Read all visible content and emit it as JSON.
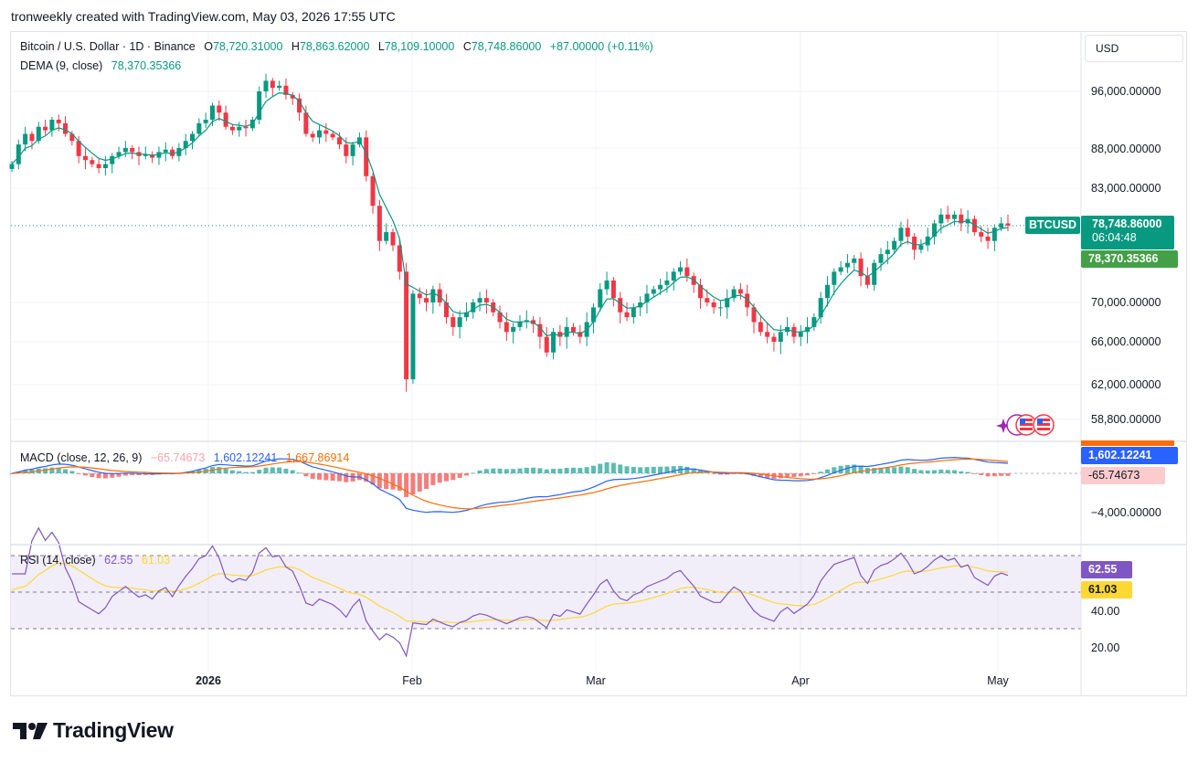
{
  "header": {
    "caption": "tronweekly created with TradingView.com, May 03, 2026 17:55 UTC"
  },
  "symbol": {
    "title": "Bitcoin / U.S. Dollar · 1D · Binance",
    "o_label": "O",
    "o": "78,720.31000",
    "h_label": "H",
    "h": "78,863.62000",
    "l_label": "L",
    "l": "78,109.10000",
    "c_label": "C",
    "c": "78,748.86000",
    "change": "+87.00000 (+0.11%)"
  },
  "dema": {
    "label": "DEMA (9, close)",
    "value": "78,370.35366"
  },
  "currency_button": "USD",
  "price_axis": [
    "96,000.00000",
    "88,000.00000",
    "83,000.00000",
    "70,000.00000",
    "66,000.00000",
    "62,000.00000",
    "58,800.00000"
  ],
  "tags": {
    "ticker": "BTCUSD",
    "last_price": "78,748.86000",
    "countdown": "06:04:48",
    "dema_value": "78,370.35366",
    "macd_value": "1,602.12241",
    "hist_value": "-65.74673",
    "rsi_value": "62.55",
    "rsi_ma_value": "61.03"
  },
  "macd": {
    "label": "MACD (close, 12, 26, 9)",
    "hist": "−65.74673",
    "macd": "1,602.12241",
    "signal": "1,667.86914",
    "axis": "−4,000.00000"
  },
  "rsi": {
    "label": "RSI (14, close)",
    "value": "62.55",
    "ma": "61.03",
    "axis": [
      "40.00",
      "20.00"
    ]
  },
  "time_axis": [
    "2026",
    "Feb",
    "Mar",
    "Apr",
    "May"
  ],
  "colors": {
    "up": "#089981",
    "down": "#f23645",
    "dema": "#089981",
    "macd": "#2962ff",
    "signal": "#ff6d00",
    "rsi": "#7e57c2",
    "rsi_ma": "#fdd835"
  },
  "brand": "TradingView",
  "chart_data": {
    "type": "candlestick",
    "title": "Bitcoin / U.S. Dollar · 1D · Binance",
    "y_axis_ticks": [
      96000,
      88000,
      83000,
      70000,
      66000,
      62000,
      58800
    ],
    "x_axis_ticks": [
      "2026",
      "Feb",
      "Mar",
      "Apr",
      "May"
    ],
    "last_close": 78748.86,
    "closes_approx": [
      86000,
      88500,
      90000,
      89000,
      91000,
      90500,
      92000,
      91500,
      90000,
      89000,
      87000,
      86500,
      86000,
      85500,
      86000,
      87000,
      87500,
      88000,
      87500,
      87000,
      87200,
      86800,
      87500,
      87800,
      87000,
      88000,
      89000,
      90000,
      91500,
      92000,
      94000,
      93000,
      91000,
      90500,
      91000,
      90800,
      92000,
      96000,
      97500,
      96500,
      96800,
      95500,
      95000,
      93000,
      90000,
      89500,
      90500,
      90000,
      89500,
      88500,
      87000,
      88500,
      89500,
      84500,
      81000,
      77000,
      78000,
      76500,
      73500,
      62500,
      71000,
      70500,
      70000,
      71500,
      70000,
      68500,
      67500,
      68500,
      69000,
      70000,
      70500,
      70000,
      69000,
      68000,
      67000,
      67500,
      68000,
      68200,
      67800,
      66500,
      65000,
      67000,
      66500,
      67500,
      67000,
      66500,
      68000,
      69500,
      71500,
      72500,
      70500,
      69000,
      68500,
      69500,
      70000,
      71000,
      71500,
      72000,
      72500,
      73500,
      74000,
      73000,
      72000,
      70500,
      70000,
      69500,
      69500,
      70500,
      71500,
      71000,
      69500,
      68000,
      67000,
      66500,
      66000,
      67000,
      67500,
      66500,
      67000,
      67500,
      68500,
      70500,
      72000,
      73500,
      74000,
      74500,
      75000,
      73000,
      72000,
      74500,
      75500,
      76000,
      77000,
      78500,
      77500,
      76000,
      76500,
      77500,
      79000,
      80000,
      79500,
      80000,
      79000,
      79500,
      78000,
      77500,
      77000,
      78500,
      79000,
      78749
    ],
    "macd": {
      "macd": 1602.12241,
      "signal": 1667.86914,
      "histogram": -65.74673,
      "axis_tick": -4000
    },
    "rsi": {
      "rsi": 62.55,
      "ma": 61.03,
      "axis_ticks": [
        40,
        20
      ]
    }
  }
}
